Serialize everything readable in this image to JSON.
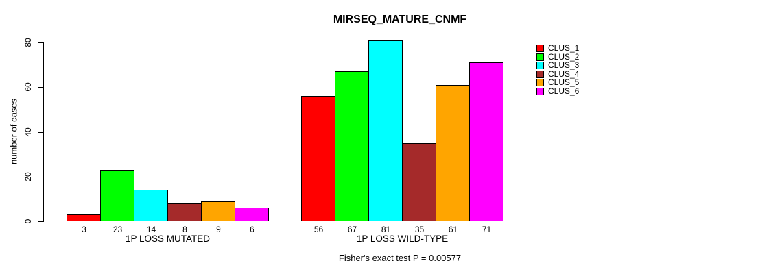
{
  "chart_data": {
    "type": "bar",
    "title": "MIRSEQ_MATURE_CNMF",
    "ylabel": "number of cases",
    "xlabel": "",
    "ylim": [
      0,
      80
    ],
    "yticks": [
      0,
      20,
      40,
      60,
      80
    ],
    "grid": false,
    "legend_position": "right",
    "bar_value_labels_shown": true,
    "series": [
      {
        "name": "CLUS_1",
        "color": "#FF0000",
        "values": [
          3,
          56
        ]
      },
      {
        "name": "CLUS_2",
        "color": "#00FF00",
        "values": [
          23,
          67
        ]
      },
      {
        "name": "CLUS_3",
        "color": "#00FFFF",
        "values": [
          14,
          81
        ]
      },
      {
        "name": "CLUS_4",
        "color": "#A52A2A",
        "values": [
          8,
          35
        ]
      },
      {
        "name": "CLUS_5",
        "color": "#FFA500",
        "values": [
          9,
          61
        ]
      },
      {
        "name": "CLUS_6",
        "color": "#FF00FF",
        "values": [
          6,
          71
        ]
      }
    ],
    "groups": [
      {
        "label": "1P LOSS MUTATED",
        "values": [
          3,
          23,
          14,
          8,
          9,
          6
        ]
      },
      {
        "label": "1P LOSS WILD-TYPE",
        "values": [
          56,
          67,
          81,
          35,
          61,
          71
        ]
      }
    ],
    "footnote": "Fisher's exact test P = 0.00577"
  }
}
